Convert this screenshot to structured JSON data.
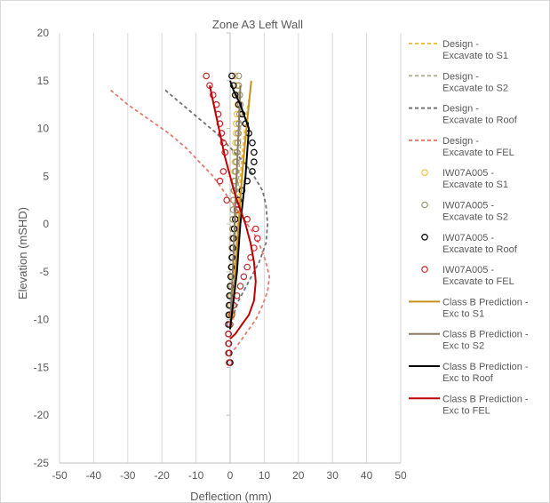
{
  "chart_data": {
    "type": "line",
    "title": "Zone A3 Left Wall",
    "xlabel": "Deflection (mm)",
    "ylabel": "Elevation (mSHD)",
    "xlim": [
      -50,
      50
    ],
    "ylim": [
      -25,
      20
    ],
    "xticks": [
      -50,
      -40,
      -30,
      -20,
      -10,
      0,
      10,
      20,
      30,
      40,
      50
    ],
    "yticks": [
      -25,
      -20,
      -15,
      -10,
      -5,
      0,
      5,
      10,
      15,
      20
    ],
    "grid": "vertical",
    "legend_position": "right",
    "series": [
      {
        "name": "Design - Excavate to S1",
        "style": "dashed",
        "color": "#f0c04a",
        "x": [
          1,
          1.2,
          1.5,
          2,
          2.5,
          3,
          3.5,
          4,
          4.5,
          5,
          5.5,
          6
        ],
        "y": [
          -10,
          -7,
          -4,
          -1,
          2,
          5,
          7,
          9,
          10.5,
          12,
          13,
          14
        ]
      },
      {
        "name": "Design - Excavate to S2",
        "style": "dashed",
        "color": "#b5b09a",
        "x": [
          0.5,
          1,
          1.5,
          2,
          2.5,
          3,
          3,
          3,
          3
        ],
        "y": [
          -9,
          -5,
          -1,
          2,
          5,
          8,
          10,
          12,
          14
        ]
      },
      {
        "name": "Design - Excavate to Roof",
        "style": "dashed",
        "color": "#737373",
        "x": [
          -19,
          -14,
          -9,
          -4,
          0,
          4,
          7,
          9.5,
          10.5,
          11,
          10.5,
          8.5,
          5.5,
          2.5,
          0.5
        ],
        "y": [
          14,
          12.5,
          11,
          9.5,
          8,
          6.5,
          5,
          3.5,
          2,
          0,
          -2,
          -4,
          -6,
          -8,
          -10
        ]
      },
      {
        "name": "Design - Excavate to FEL",
        "style": "dashed",
        "color": "#e07d72",
        "x": [
          -35,
          -30,
          -24,
          -18,
          -13,
          -9,
          -5,
          -2,
          1,
          4,
          7,
          9,
          10.5,
          11.5,
          11,
          9.5,
          7.5,
          4.5,
          1.5,
          0
        ],
        "y": [
          14,
          12.5,
          11,
          9.5,
          8,
          6.5,
          5,
          3.5,
          2,
          0.5,
          -1,
          -2.5,
          -4,
          -5.5,
          -7,
          -8.5,
          -10,
          -11.5,
          -13,
          -13.5
        ]
      },
      {
        "name": "IW07A005 - Excavate to S1",
        "style": "markers",
        "color": "#f0c04a",
        "x": [
          1.5,
          2,
          2,
          2.2,
          2,
          1.8,
          1.8,
          1.6,
          1.5,
          1.4,
          1.3,
          1.2,
          1.1,
          1,
          0.9,
          0.8,
          0.8,
          0.7,
          0.6,
          0.6,
          0.5,
          0.5,
          0.4,
          0.3,
          0.2,
          0.1
        ],
        "y": [
          15.5,
          14.5,
          13.5,
          12.5,
          11.5,
          10.5,
          9.5,
          8.5,
          7.5,
          6.5,
          5.5,
          4.5,
          3.5,
          2.5,
          1.5,
          0.5,
          -0.5,
          -1.5,
          -2.5,
          -3.5,
          -4.5,
          -5.5,
          -6.5,
          -7.5,
          -8.5,
          -9.5
        ]
      },
      {
        "name": "IW07A005 - Excavate to S2",
        "style": "markers",
        "color": "#9a9470",
        "x": [
          2.5,
          2.5,
          2.8,
          3,
          2.8,
          2.6,
          2.4,
          2.2,
          2,
          1.8,
          1.6,
          1.4,
          1.2,
          1,
          0.9,
          0.8,
          0.7,
          0.6,
          0.5,
          0.4,
          0.3,
          0.2,
          0.1,
          0,
          0,
          -0.1
        ],
        "y": [
          15.5,
          14.5,
          13.5,
          12.5,
          11.5,
          10.5,
          9.5,
          8.5,
          7.5,
          6.5,
          5.5,
          4.5,
          3.5,
          2.5,
          1.5,
          0.5,
          -0.5,
          -1.5,
          -2.5,
          -3.5,
          -4.5,
          -5.5,
          -6.5,
          -7.5,
          -8.5,
          -9.5
        ]
      },
      {
        "name": "IW07A005 - Excavate to Roof",
        "style": "markers",
        "color": "#000000",
        "x": [
          0.5,
          1,
          1.5,
          2.5,
          3.5,
          4.5,
          5.5,
          6.5,
          7,
          7,
          6.5,
          5,
          3.5,
          2.5,
          2,
          1.5,
          1.2,
          1,
          0.8,
          0.6,
          0.4,
          0.2,
          0,
          -0.2,
          -0.3,
          -0.4,
          -0.5,
          -0.5,
          -0.4,
          -0.3,
          0
        ],
        "y": [
          15.5,
          14.5,
          13.5,
          12.5,
          11.5,
          10.5,
          9.5,
          8.5,
          7.5,
          6.5,
          5.5,
          4.5,
          3.5,
          2.5,
          1.5,
          0.5,
          -0.5,
          -1.5,
          -2.5,
          -3.5,
          -4.5,
          -5.5,
          -6.5,
          -7.5,
          -8.5,
          -9.5,
          -10.5,
          -11.5,
          -12.5,
          -13.5,
          -14.5
        ]
      },
      {
        "name": "IW07A005 - Excavate to FEL",
        "style": "markers",
        "color": "#c0282d",
        "x": [
          -7,
          -6,
          -5,
          -4,
          -3.5,
          -3,
          -2.5,
          -2,
          -1.5,
          -2,
          -3,
          -1,
          2,
          5,
          7.5,
          8,
          7,
          6,
          5,
          4,
          3,
          2,
          1,
          0.5,
          0,
          -0.5,
          -0.5,
          -0.5,
          -0.3
        ],
        "y": [
          15.5,
          14.5,
          13.5,
          12.5,
          11.5,
          10.5,
          9.5,
          8.5,
          7.5,
          5.5,
          4.5,
          2.5,
          1.5,
          0.5,
          -0.5,
          -1.5,
          -2.5,
          -3.5,
          -4.5,
          -5.5,
          -6.5,
          -7.5,
          -8.5,
          -9.5,
          -10.5,
          -11.5,
          -12.5,
          -13.5,
          -14.5
        ]
      },
      {
        "name": "Class B Prediction - Exc to S1",
        "style": "solid",
        "color": "#c8901a",
        "x": [
          0.5,
          1.5,
          2.5,
          3.5,
          4.5,
          5.5,
          6.2
        ],
        "y": [
          -10,
          -5,
          0,
          5,
          9,
          12.5,
          15
        ]
      },
      {
        "name": "Class B Prediction - Exc to S2",
        "style": "solid",
        "color": "#8a7a60",
        "x": [
          0,
          0.5,
          1,
          1.5,
          2,
          2.5,
          3
        ],
        "y": [
          -11,
          -7,
          -3,
          2,
          6,
          10,
          14.5
        ]
      },
      {
        "name": "Class B Prediction - Exc to Roof",
        "style": "solid",
        "color": "#000000",
        "x": [
          0,
          1,
          2,
          3,
          4.5,
          5.5,
          3,
          1,
          0
        ],
        "y": [
          -11,
          -8,
          -5,
          0,
          5,
          10,
          12.5,
          14,
          15
        ]
      },
      {
        "name": "Class B Prediction - Exc to FEL",
        "style": "solid",
        "color": "#c00000",
        "x": [
          -6,
          -4.5,
          -3,
          -1.5,
          0,
          1.5,
          3,
          4.5,
          6,
          7,
          7.5,
          7,
          5.5,
          3.5,
          1.5,
          0
        ],
        "y": [
          14.5,
          12,
          9.5,
          7,
          5,
          3,
          1.5,
          0,
          -2,
          -4,
          -6,
          -8,
          -9.5,
          -10.5,
          -11.5,
          -12
        ]
      }
    ]
  },
  "legend_items": [
    {
      "line1": "Design -",
      "line2": "Excavate to S1"
    },
    {
      "line1": "Design -",
      "line2": "Excavate to S2"
    },
    {
      "line1": "Design -",
      "line2": "Excavate to Roof"
    },
    {
      "line1": "Design -",
      "line2": "Excavate to FEL"
    },
    {
      "line1": "IW07A005 -",
      "line2": "Excavate to S1"
    },
    {
      "line1": "IW07A005 -",
      "line2": "Excavate to S2"
    },
    {
      "line1": "IW07A005 -",
      "line2": "Excavate to Roof"
    },
    {
      "line1": "IW07A005 -",
      "line2": "Excavate to FEL"
    },
    {
      "line1": "Class B Prediction -",
      "line2": "Exc to S1"
    },
    {
      "line1": "Class B Prediction -",
      "line2": "Exc to S2"
    },
    {
      "line1": "Class B Prediction -",
      "line2": "Exc to Roof"
    },
    {
      "line1": "Class B Prediction -",
      "line2": "Exc to FEL"
    }
  ]
}
